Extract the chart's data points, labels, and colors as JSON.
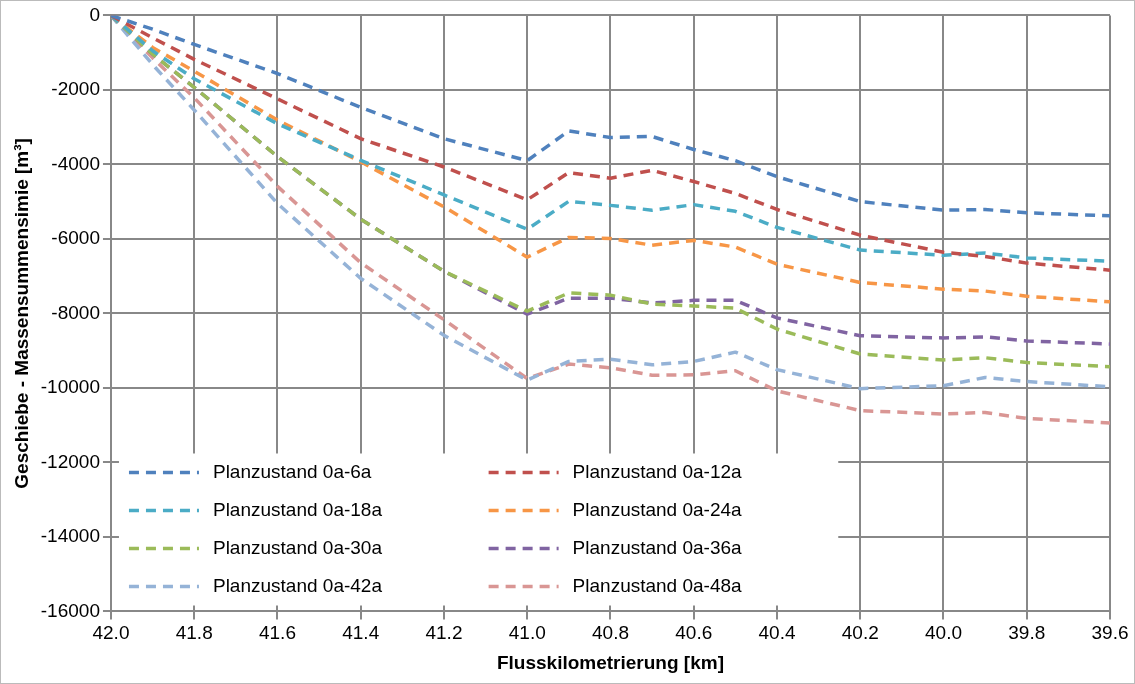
{
  "chart_data": {
    "type": "line",
    "xlabel": "Flusskilometrierung [km]",
    "ylabel": "Geschiebe - Massensummensimie [m³]",
    "x": [
      42.0,
      41.9,
      41.8,
      41.6,
      41.4,
      41.2,
      41.0,
      40.9,
      40.8,
      40.7,
      40.6,
      40.5,
      40.4,
      40.2,
      40.0,
      39.9,
      39.8,
      39.6
    ],
    "series": [
      {
        "name": "Planzustand 0a-6a",
        "color": "#4f81bd",
        "values": [
          0,
          -370,
          -780,
          -1560,
          -2470,
          -3310,
          -3900,
          -3100,
          -3280,
          -3250,
          -3600,
          -3900,
          -4330,
          -5000,
          -5230,
          -5210,
          -5300,
          -5380
        ]
      },
      {
        "name": "Planzustand 0a-12a",
        "color": "#c0504d",
        "values": [
          0,
          -600,
          -1180,
          -2240,
          -3310,
          -4070,
          -4950,
          -4220,
          -4370,
          -4160,
          -4460,
          -4780,
          -5210,
          -5900,
          -6360,
          -6470,
          -6650,
          -6840
        ]
      },
      {
        "name": "Planzustand 0a-18a",
        "color": "#4bacc6",
        "values": [
          0,
          -950,
          -1700,
          -2910,
          -3890,
          -4820,
          -5740,
          -4990,
          -5100,
          -5230,
          -5080,
          -5260,
          -5690,
          -6300,
          -6440,
          -6380,
          -6510,
          -6600
        ]
      },
      {
        "name": "Planzustand 0a-24a",
        "color": "#f79646",
        "values": [
          0,
          -860,
          -1500,
          -2810,
          -3930,
          -5140,
          -6490,
          -5960,
          -5990,
          -6170,
          -6040,
          -6220,
          -6680,
          -7170,
          -7350,
          -7400,
          -7540,
          -7690
        ]
      },
      {
        "name": "Planzustand 0a-30a",
        "color": "#9bbb59",
        "values": [
          0,
          -1040,
          -1930,
          -3790,
          -5470,
          -6870,
          -7940,
          -7450,
          -7510,
          -7750,
          -7800,
          -7860,
          -8420,
          -9090,
          -9250,
          -9190,
          -9320,
          -9430
        ]
      },
      {
        "name": "Planzustand 0a-36a",
        "color": "#8064a2",
        "values": [
          0,
          -1040,
          -1930,
          -3790,
          -5470,
          -6870,
          -8020,
          -7590,
          -7590,
          -7720,
          -7650,
          -7650,
          -8120,
          -8600,
          -8660,
          -8630,
          -8740,
          -8820
        ]
      },
      {
        "name": "Planzustand 0a-42a",
        "color": "#95b3d7",
        "values": [
          0,
          -1320,
          -2540,
          -5050,
          -7060,
          -8590,
          -9790,
          -9290,
          -9230,
          -9380,
          -9290,
          -9040,
          -9510,
          -10020,
          -9940,
          -9720,
          -9830,
          -9970
        ]
      },
      {
        "name": "Planzustand 0a-48a",
        "color": "#d99694",
        "values": [
          0,
          -1140,
          -2210,
          -4590,
          -6640,
          -8170,
          -9750,
          -9360,
          -9460,
          -9660,
          -9650,
          -9540,
          -10080,
          -10610,
          -10700,
          -10660,
          -10820,
          -10940
        ]
      }
    ],
    "xlim": [
      42.0,
      39.6
    ],
    "xticks": [
      {
        "value": 42.0,
        "label": "42.0"
      },
      {
        "value": 41.8,
        "label": "41.8"
      },
      {
        "value": 41.6,
        "label": "41.6"
      },
      {
        "value": 41.4,
        "label": "41.4"
      },
      {
        "value": 41.2,
        "label": "41.2"
      },
      {
        "value": 41.0,
        "label": "41.0"
      },
      {
        "value": 40.8,
        "label": "40.8"
      },
      {
        "value": 40.6,
        "label": "40.6"
      },
      {
        "value": 40.4,
        "label": "40.4"
      },
      {
        "value": 40.2,
        "label": "40.2"
      },
      {
        "value": 40.0,
        "label": "40.0"
      },
      {
        "value": 39.8,
        "label": "39.8"
      },
      {
        "value": 39.6,
        "label": "39.6"
      }
    ],
    "ylim": [
      -16000,
      0
    ],
    "yticks": [
      -16000,
      -14000,
      -12000,
      -10000,
      -8000,
      -6000,
      -4000,
      -2000,
      0
    ],
    "grid": true,
    "legend": "bottom left",
    "marker": "none",
    "line_style": "dashed"
  }
}
